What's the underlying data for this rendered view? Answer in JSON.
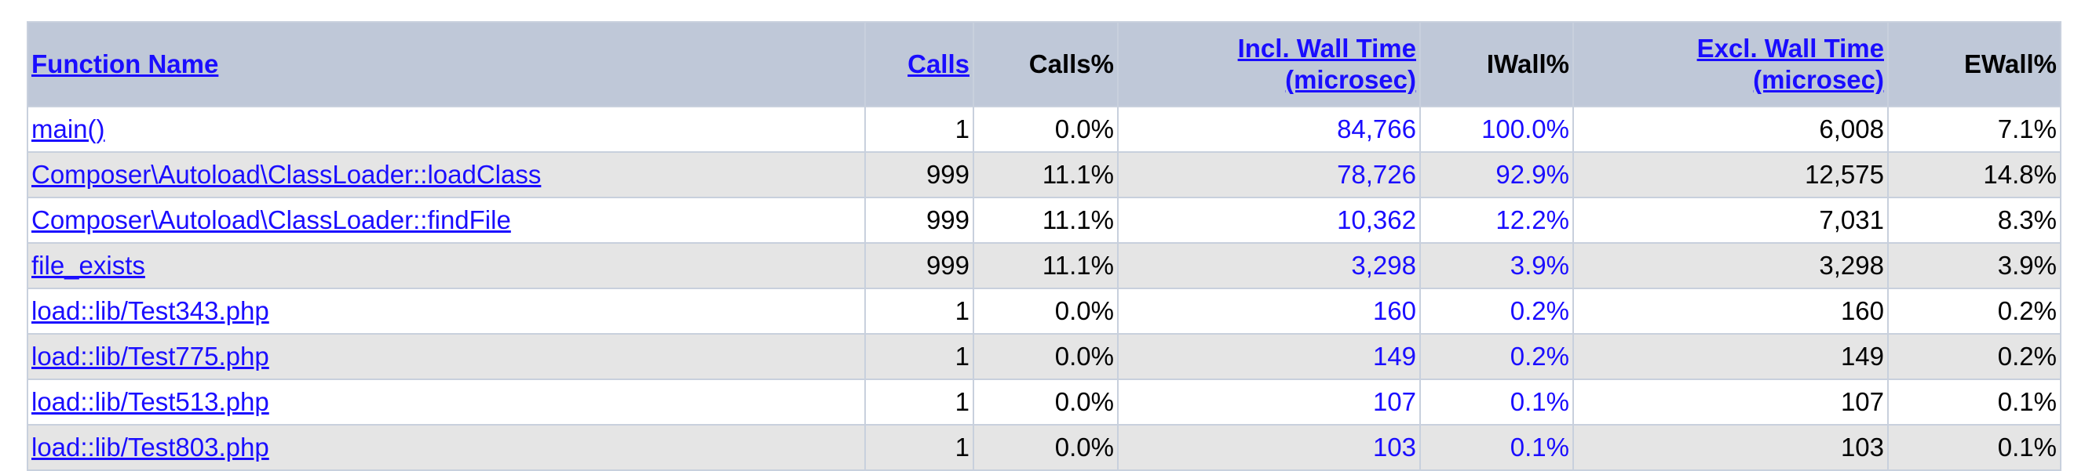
{
  "table": {
    "headers": {
      "function_name": "Function Name",
      "calls": "Calls",
      "calls_pct": "Calls%",
      "incl_wall_line1": "Incl. Wall Time",
      "incl_wall_line2": "(microsec)",
      "iwall_pct": "IWall%",
      "excl_wall_line1": "Excl. Wall Time",
      "excl_wall_line2": "(microsec)",
      "ewall_pct": "EWall%"
    },
    "rows": [
      {
        "fn": "main()",
        "calls": "1",
        "calls_pct": "0.0%",
        "incl": "84,766",
        "iwall": "100.0%",
        "excl": "6,008",
        "ewall": "7.1%"
      },
      {
        "fn": "Composer\\Autoload\\ClassLoader::loadClass",
        "calls": "999",
        "calls_pct": "11.1%",
        "incl": "78,726",
        "iwall": "92.9%",
        "excl": "12,575",
        "ewall": "14.8%"
      },
      {
        "fn": "Composer\\Autoload\\ClassLoader::findFile",
        "calls": "999",
        "calls_pct": "11.1%",
        "incl": "10,362",
        "iwall": "12.2%",
        "excl": "7,031",
        "ewall": "8.3%"
      },
      {
        "fn": "file_exists",
        "calls": "999",
        "calls_pct": "11.1%",
        "incl": "3,298",
        "iwall": "3.9%",
        "excl": "3,298",
        "ewall": "3.9%"
      },
      {
        "fn": "load::lib/Test343.php",
        "calls": "1",
        "calls_pct": "0.0%",
        "incl": "160",
        "iwall": "0.2%",
        "excl": "160",
        "ewall": "0.2%"
      },
      {
        "fn": "load::lib/Test775.php",
        "calls": "1",
        "calls_pct": "0.0%",
        "incl": "149",
        "iwall": "0.2%",
        "excl": "149",
        "ewall": "0.2%"
      },
      {
        "fn": "load::lib/Test513.php",
        "calls": "1",
        "calls_pct": "0.0%",
        "incl": "107",
        "iwall": "0.1%",
        "excl": "107",
        "ewall": "0.1%"
      },
      {
        "fn": "load::lib/Test803.php",
        "calls": "1",
        "calls_pct": "0.0%",
        "incl": "103",
        "iwall": "0.1%",
        "excl": "103",
        "ewall": "0.1%"
      }
    ]
  }
}
